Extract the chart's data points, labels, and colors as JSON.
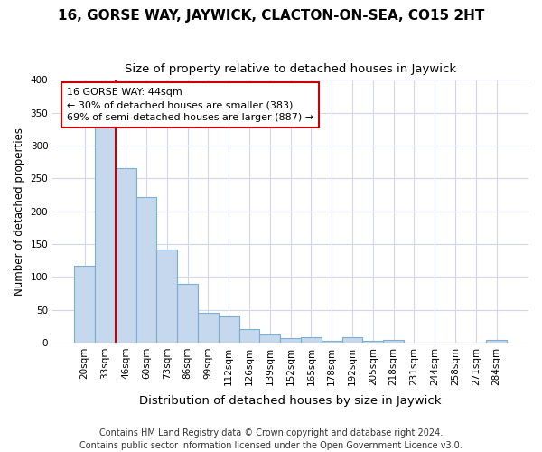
{
  "title": "16, GORSE WAY, JAYWICK, CLACTON-ON-SEA, CO15 2HT",
  "subtitle": "Size of property relative to detached houses in Jaywick",
  "xlabel": "Distribution of detached houses by size in Jaywick",
  "ylabel": "Number of detached properties",
  "categories": [
    "20sqm",
    "33sqm",
    "46sqm",
    "60sqm",
    "73sqm",
    "86sqm",
    "99sqm",
    "112sqm",
    "126sqm",
    "139sqm",
    "152sqm",
    "165sqm",
    "178sqm",
    "192sqm",
    "205sqm",
    "218sqm",
    "231sqm",
    "244sqm",
    "258sqm",
    "271sqm",
    "284sqm"
  ],
  "values": [
    117,
    330,
    265,
    221,
    142,
    90,
    45,
    40,
    20,
    12,
    7,
    8,
    2,
    8,
    2,
    4,
    0,
    0,
    0,
    0,
    4
  ],
  "bar_color": "#c5d8ee",
  "bar_edge_color": "#7aafd4",
  "vline_x": 1.5,
  "vline_color": "#cc0000",
  "annotation_text": "16 GORSE WAY: 44sqm\n← 30% of detached houses are smaller (383)\n69% of semi-detached houses are larger (887) →",
  "annotation_box_color": "#ffffff",
  "annotation_box_edge": "#cc0000",
  "footer": "Contains HM Land Registry data © Crown copyright and database right 2024.\nContains public sector information licensed under the Open Government Licence v3.0.",
  "ylim": [
    0,
    400
  ],
  "bg_color": "#ffffff",
  "grid_color": "#d0d8e8",
  "title_fontsize": 11,
  "subtitle_fontsize": 9.5,
  "xlabel_fontsize": 9.5,
  "ylabel_fontsize": 8.5,
  "tick_fontsize": 7.5,
  "annotation_fontsize": 8,
  "footer_fontsize": 7
}
